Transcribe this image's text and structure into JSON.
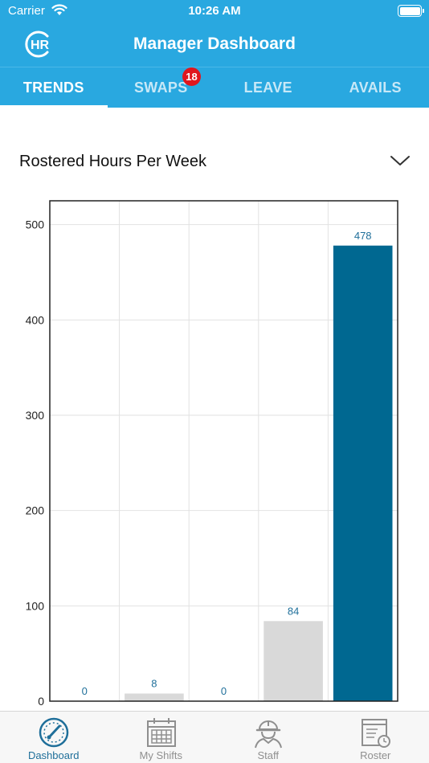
{
  "status_bar": {
    "carrier": "Carrier",
    "time": "10:26 AM"
  },
  "header": {
    "title": "Manager Dashboard",
    "logo_text": "HR"
  },
  "tabs": [
    {
      "label": "TRENDS",
      "active": true
    },
    {
      "label": "SWAPS",
      "active": false,
      "badge": "18"
    },
    {
      "label": "LEAVE",
      "active": false
    },
    {
      "label": "AVAILS",
      "active": false
    }
  ],
  "report_selector": {
    "label": "Rostered Hours Per Week"
  },
  "colors": {
    "primary": "#29a8e0",
    "badge": "#e0161e",
    "bar_highlight": "#006891",
    "bar_default": "#d9d9d9",
    "value_label": "#1f6f9a"
  },
  "chart_data": {
    "type": "bar",
    "categories": [
      "",
      "",
      "",
      "",
      ""
    ],
    "values": [
      0,
      8,
      0,
      84,
      478
    ],
    "highlight_index": 4,
    "ylim": [
      0,
      525
    ],
    "y_ticks": [
      0,
      100,
      200,
      300,
      400,
      500
    ],
    "grid": true,
    "data_labels": true
  },
  "bottom_nav": [
    {
      "label": "Dashboard",
      "icon": "dashboard-gauge-icon",
      "active": true
    },
    {
      "label": "My Shifts",
      "icon": "calendar-icon",
      "active": false
    },
    {
      "label": "Staff",
      "icon": "staff-hardhat-icon",
      "active": false
    },
    {
      "label": "Roster",
      "icon": "roster-clock-icon",
      "active": false
    }
  ]
}
